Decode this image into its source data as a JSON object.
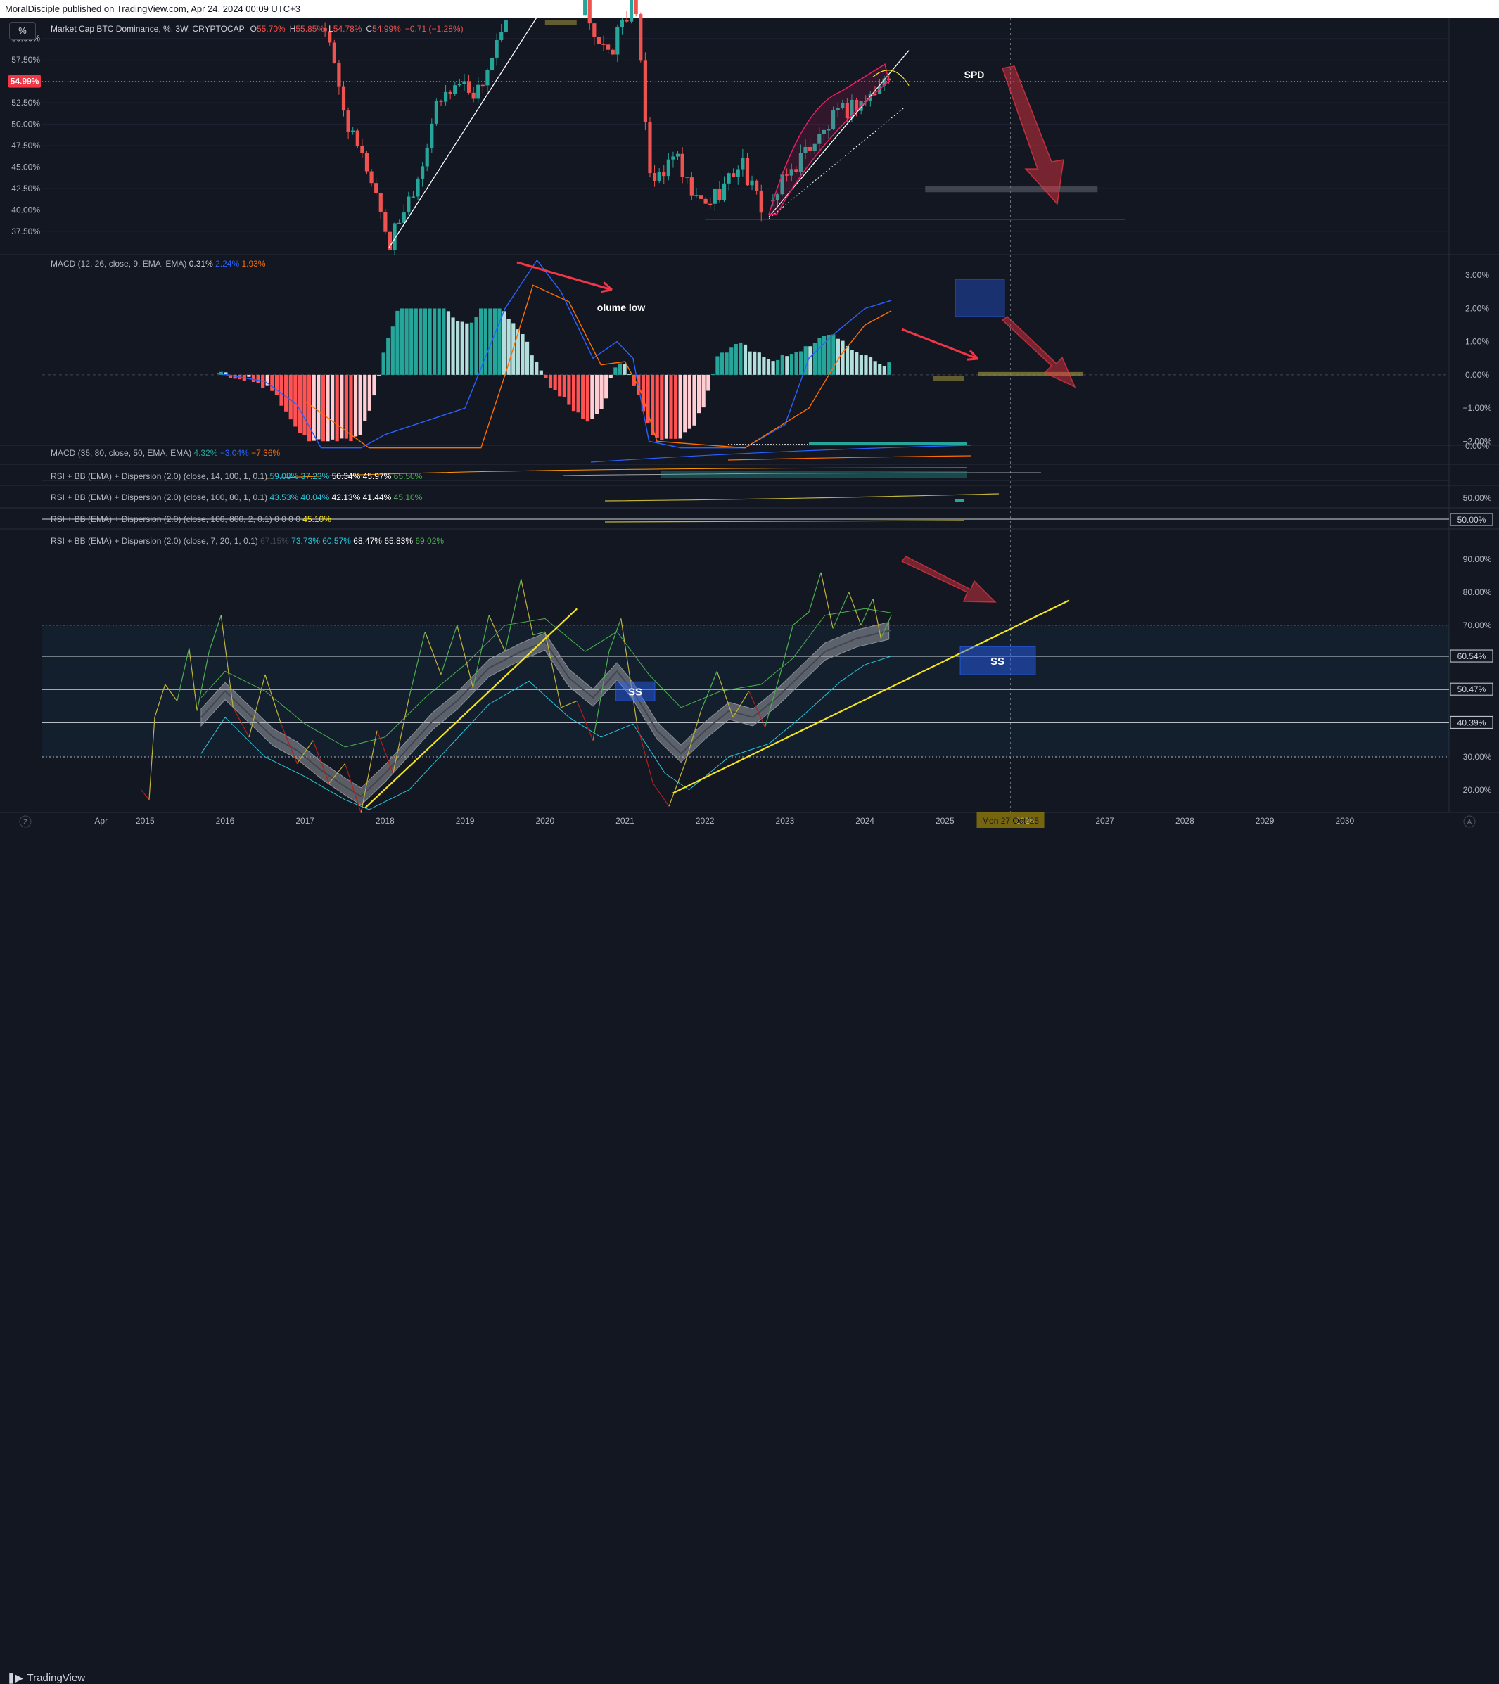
{
  "header": {
    "published": "MoralDisciple published on TradingView.com, Apr 24, 2024 00:09 UTC+3"
  },
  "toolbar": {
    "percent_button": "%"
  },
  "footer": {
    "logo_text": "TradingView",
    "corner_left": "Z",
    "corner_right": "A"
  },
  "colors": {
    "background": "#131722",
    "up": "#26a69a",
    "down": "#ef5350",
    "macd": "#2962ff",
    "signal": "#ff6d00",
    "rsi_trend": "#f4e320"
  },
  "chart_data": [
    {
      "type": "candlestick",
      "legend": {
        "title": "Market Cap BTC Dominance, %, 3W, CRYPTOCAP",
        "o_label": "O",
        "o": "55.70%",
        "h_label": "H",
        "h": "55.85%",
        "l_label": "L",
        "l": "54.78%",
        "c_label": "C",
        "c": "54.99%",
        "change": "−0.71 (−1.28%)"
      },
      "y_ticks": [
        "60.00%",
        "57.50%",
        "55.00%",
        "52.50%",
        "50.00%",
        "47.50%",
        "45.00%",
        "42.50%",
        "40.00%",
        "37.50%"
      ],
      "price_badge": "54.99%",
      "annotations": [
        "SPD"
      ],
      "ylim": [
        35.6,
        61.2
      ],
      "close_series": [
        [
          2017.25,
          61.2
        ],
        [
          2017.45,
          53.0
        ],
        [
          2017.6,
          48.0
        ],
        [
          2017.8,
          44.5
        ],
        [
          2017.95,
          40.0
        ],
        [
          2018.05,
          35.6
        ],
        [
          2018.15,
          38.5
        ],
        [
          2018.3,
          41.5
        ],
        [
          2018.45,
          45.0
        ],
        [
          2018.6,
          51.0
        ],
        [
          2018.8,
          54.0
        ],
        [
          2018.95,
          55.0
        ],
        [
          2019.15,
          53.5
        ],
        [
          2019.3,
          57.0
        ],
        [
          2019.45,
          60.0
        ],
        [
          2019.55,
          62.5
        ],
        [
          2020.5,
          64.0
        ],
        [
          2020.65,
          60.0
        ],
        [
          2020.8,
          57.5
        ],
        [
          2020.95,
          62.0
        ],
        [
          2021.1,
          64.0
        ],
        [
          2021.2,
          58.0
        ],
        [
          2021.3,
          45.0
        ],
        [
          2021.45,
          43.0
        ],
        [
          2021.6,
          47.0
        ],
        [
          2021.75,
          43.0
        ],
        [
          2021.9,
          41.0
        ],
        [
          2022.0,
          40.5
        ],
        [
          2022.15,
          42.0
        ],
        [
          2022.3,
          43.5
        ],
        [
          2022.45,
          46.0
        ],
        [
          2022.6,
          42.0
        ],
        [
          2022.75,
          40.0
        ],
        [
          2022.85,
          41.0
        ],
        [
          2023.0,
          43.5
        ],
        [
          2023.15,
          45.5
        ],
        [
          2023.3,
          47.5
        ],
        [
          2023.45,
          48.5
        ],
        [
          2023.6,
          50.5
        ],
        [
          2023.75,
          51.5
        ],
        [
          2023.9,
          52.5
        ],
        [
          2024.05,
          53.0
        ],
        [
          2024.2,
          54.5
        ],
        [
          2024.3,
          55.7
        ],
        [
          2024.33,
          54.99
        ]
      ]
    },
    {
      "type": "bar",
      "legend": {
        "title": "MACD (12, 26, close, 9, EMA, EMA)",
        "hist": "0.31%",
        "macd": "2.24%",
        "signal": "1.93%"
      },
      "y_ticks": [
        "3.00%",
        "2.00%",
        "1.00%",
        "0.00%",
        "−1.00%",
        "−2.00%"
      ],
      "annotations": [
        "olume low"
      ],
      "ylim": [
        -2.1,
        3.45
      ],
      "histogram": [
        [
          2015.95,
          0.02
        ],
        [
          2016.3,
          -0.15
        ],
        [
          2016.6,
          -0.5
        ],
        [
          2016.85,
          -1.5
        ],
        [
          2017.05,
          -2.0
        ],
        [
          2017.25,
          -2.0
        ],
        [
          2017.5,
          -2.0
        ],
        [
          2017.7,
          -1.8
        ],
        [
          2017.85,
          -0.8
        ],
        [
          2017.95,
          0.4
        ],
        [
          2018.2,
          2.3
        ],
        [
          2018.45,
          3.0
        ],
        [
          2018.65,
          2.5
        ],
        [
          2018.85,
          1.7
        ],
        [
          2019.05,
          1.5
        ],
        [
          2019.3,
          2.4
        ],
        [
          2019.5,
          1.9
        ],
        [
          2019.75,
          1.1
        ],
        [
          2019.9,
          0.3
        ],
        [
          2020.05,
          -0.3
        ],
        [
          2020.3,
          -0.9
        ],
        [
          2020.55,
          -1.4
        ],
        [
          2020.75,
          -0.9
        ],
        [
          2020.85,
          0.2
        ],
        [
          2021.0,
          0.4
        ],
        [
          2021.2,
          -0.8
        ],
        [
          2021.35,
          -1.9
        ],
        [
          2021.6,
          -2.0
        ],
        [
          2021.85,
          -1.6
        ],
        [
          2022.0,
          -0.8
        ],
        [
          2022.15,
          0.5
        ],
        [
          2022.45,
          0.95
        ],
        [
          2022.7,
          0.6
        ],
        [
          2022.9,
          0.45
        ],
        [
          2023.2,
          0.75
        ],
        [
          2023.45,
          1.1
        ],
        [
          2023.6,
          1.3
        ],
        [
          2023.85,
          0.8
        ],
        [
          2024.1,
          0.45
        ],
        [
          2024.3,
          0.31
        ]
      ],
      "macd_line": [
        [
          2015.9,
          0.05
        ],
        [
          2016.5,
          -0.2
        ],
        [
          2016.9,
          -0.9
        ],
        [
          2017.2,
          -2.2
        ],
        [
          2017.7,
          -2.2
        ],
        [
          2018.0,
          -1.8
        ],
        [
          2019.0,
          -1.0
        ],
        [
          2019.5,
          2.0
        ],
        [
          2019.9,
          3.45
        ],
        [
          2020.2,
          2.5
        ],
        [
          2020.6,
          0.5
        ],
        [
          2020.9,
          1.0
        ],
        [
          2021.1,
          0.5
        ],
        [
          2021.3,
          -2.0
        ],
        [
          2021.7,
          -2.2
        ],
        [
          2022.5,
          -2.2
        ],
        [
          2023.0,
          -1.5
        ],
        [
          2023.3,
          0.5
        ],
        [
          2023.6,
          1.2
        ],
        [
          2024.0,
          2.0
        ],
        [
          2024.33,
          2.24
        ]
      ],
      "signal_line": [
        [
          2017.0,
          -0.8
        ],
        [
          2017.8,
          -2.2
        ],
        [
          2019.2,
          -2.2
        ],
        [
          2019.5,
          0.0
        ],
        [
          2019.85,
          2.7
        ],
        [
          2020.3,
          2.2
        ],
        [
          2020.7,
          0.3
        ],
        [
          2021.0,
          0.4
        ],
        [
          2021.2,
          -0.5
        ],
        [
          2021.4,
          -2.0
        ],
        [
          2022.5,
          -2.2
        ],
        [
          2023.3,
          -1.0
        ],
        [
          2023.7,
          0.6
        ],
        [
          2024.0,
          1.5
        ],
        [
          2024.33,
          1.93
        ]
      ]
    },
    {
      "type": "line",
      "legend": {
        "title": "MACD (35, 80, close, 50, EMA, EMA)",
        "v1": "4.32%",
        "v2": "−3.04%",
        "v3": "−7.36%"
      },
      "y_ticks": [
        "0.00%"
      ]
    },
    {
      "type": "line",
      "legend": {
        "title": "RSI + BB (EMA) + Dispersion (2.0) (close, 14, 100, 1, 0.1)",
        "v1": "59.08%",
        "v2": "37.23%",
        "v3": "50.34%",
        "v4": "45.97%",
        "v5": "65.50%"
      }
    },
    {
      "type": "line",
      "legend": {
        "title": "RSI + BB (EMA) + Dispersion (2.0) (close, 100, 80, 1, 0.1)",
        "v1": "43.53%",
        "v2": "40.04%",
        "v3": "42.13%",
        "v4": "41.44%",
        "v5": "45.10%"
      },
      "y_ticks": [
        "50.00%"
      ]
    },
    {
      "type": "line",
      "legend": {
        "title": "RSI + BB (EMA) + Dispersion (2.0) (close, 100, 800, 2, 0.1)",
        "v1": "0",
        "v2": "0",
        "v3": "0",
        "v4": "0",
        "v5": "45.10%"
      },
      "y_ticks": [
        "50.00%"
      ]
    },
    {
      "type": "line",
      "legend": {
        "title": "RSI + BB (EMA) + Dispersion (2.0) (close, 7, 20, 1, 0.1)",
        "v0": "67.15%",
        "v1": "73.73%",
        "v2": "60.57%",
        "v3": "68.47%",
        "v4": "65.83%",
        "v5": "69.02%"
      },
      "y_ticks": [
        "90.00%",
        "80.00%",
        "70.00%",
        "60.54%",
        "50.47%",
        "40.39%",
        "30.00%",
        "20.00%"
      ],
      "annotations": [
        "SS",
        "SS"
      ],
      "ylim": [
        14.2,
        97.5
      ],
      "rsi_basis": [
        [
          2015.7,
          42
        ],
        [
          2016.0,
          50
        ],
        [
          2016.3,
          43
        ],
        [
          2016.6,
          36
        ],
        [
          2016.9,
          32
        ],
        [
          2017.2,
          26
        ],
        [
          2017.5,
          21
        ],
        [
          2017.7,
          18
        ],
        [
          2018.0,
          25
        ],
        [
          2018.3,
          33
        ],
        [
          2018.6,
          41
        ],
        [
          2018.9,
          47
        ],
        [
          2019.3,
          57
        ],
        [
          2019.7,
          62
        ],
        [
          2020.0,
          65
        ],
        [
          2020.3,
          54
        ],
        [
          2020.6,
          48
        ],
        [
          2020.9,
          56
        ],
        [
          2021.1,
          50
        ],
        [
          2021.4,
          38
        ],
        [
          2021.7,
          31
        ],
        [
          2022.0,
          38
        ],
        [
          2022.3,
          44
        ],
        [
          2022.6,
          42
        ],
        [
          2022.9,
          48
        ],
        [
          2023.2,
          55
        ],
        [
          2023.5,
          62
        ],
        [
          2023.9,
          66
        ],
        [
          2024.33,
          68.47
        ]
      ],
      "rsi_upper": [
        [
          2015.7,
          48
        ],
        [
          2016.0,
          56
        ],
        [
          2016.5,
          50
        ],
        [
          2017.0,
          40
        ],
        [
          2017.5,
          33
        ],
        [
          2018.0,
          36
        ],
        [
          2018.5,
          48
        ],
        [
          2019.0,
          58
        ],
        [
          2019.5,
          70
        ],
        [
          2020.0,
          72
        ],
        [
          2020.5,
          62
        ],
        [
          2020.9,
          68
        ],
        [
          2021.3,
          55
        ],
        [
          2021.7,
          45
        ],
        [
          2022.2,
          50
        ],
        [
          2022.7,
          52
        ],
        [
          2023.1,
          60
        ],
        [
          2023.5,
          73
        ],
        [
          2024.0,
          75
        ],
        [
          2024.33,
          73.73
        ]
      ],
      "rsi_lower": [
        [
          2015.7,
          31
        ],
        [
          2016.0,
          42
        ],
        [
          2016.5,
          30
        ],
        [
          2017.0,
          24
        ],
        [
          2017.5,
          17
        ],
        [
          2017.8,
          14
        ],
        [
          2018.3,
          20
        ],
        [
          2018.8,
          33
        ],
        [
          2019.3,
          46
        ],
        [
          2019.8,
          53
        ],
        [
          2020.3,
          42
        ],
        [
          2020.7,
          36
        ],
        [
          2021.1,
          40
        ],
        [
          2021.5,
          25
        ],
        [
          2021.8,
          20
        ],
        [
          2022.3,
          30
        ],
        [
          2022.8,
          34
        ],
        [
          2023.2,
          42
        ],
        [
          2023.7,
          53
        ],
        [
          2024.0,
          58
        ],
        [
          2024.33,
          60.57
        ]
      ],
      "rsi_raw": [
        [
          2014.95,
          20
        ],
        [
          2015.05,
          17
        ],
        [
          2015.12,
          42
        ],
        [
          2015.25,
          52
        ],
        [
          2015.4,
          47
        ],
        [
          2015.55,
          63
        ],
        [
          2015.65,
          44
        ],
        [
          2015.8,
          62
        ],
        [
          2015.95,
          73
        ],
        [
          2016.1,
          45
        ],
        [
          2016.3,
          36
        ],
        [
          2016.5,
          55
        ],
        [
          2016.7,
          40
        ],
        [
          2016.9,
          28
        ],
        [
          2017.1,
          35
        ],
        [
          2017.3,
          22
        ],
        [
          2017.5,
          28
        ],
        [
          2017.7,
          13
        ],
        [
          2017.9,
          38
        ],
        [
          2018.1,
          25
        ],
        [
          2018.3,
          48
        ],
        [
          2018.5,
          68
        ],
        [
          2018.7,
          55
        ],
        [
          2018.9,
          70
        ],
        [
          2019.1,
          51
        ],
        [
          2019.3,
          73
        ],
        [
          2019.5,
          62
        ],
        [
          2019.7,
          84
        ],
        [
          2019.85,
          67
        ],
        [
          2020.0,
          68
        ],
        [
          2020.2,
          45
        ],
        [
          2020.4,
          47
        ],
        [
          2020.6,
          35
        ],
        [
          2020.8,
          62
        ],
        [
          2020.95,
          72
        ],
        [
          2021.15,
          40
        ],
        [
          2021.35,
          22
        ],
        [
          2021.55,
          15
        ],
        [
          2021.75,
          28
        ],
        [
          2021.95,
          44
        ],
        [
          2022.15,
          56
        ],
        [
          2022.35,
          42
        ],
        [
          2022.55,
          50
        ],
        [
          2022.75,
          39
        ],
        [
          2022.95,
          56
        ],
        [
          2023.1,
          70
        ],
        [
          2023.3,
          74
        ],
        [
          2023.45,
          86
        ],
        [
          2023.6,
          69
        ],
        [
          2023.8,
          80
        ],
        [
          2023.95,
          70
        ],
        [
          2024.1,
          78
        ],
        [
          2024.2,
          66
        ],
        [
          2024.33,
          73
        ]
      ]
    }
  ],
  "x_axis": {
    "labels": [
      {
        "t": "Apr",
        "x": 2014.45
      },
      {
        "t": "2015",
        "x": 2015.0
      },
      {
        "t": "2016",
        "x": 2016.0
      },
      {
        "t": "2017",
        "x": 2017.0
      },
      {
        "t": "2018",
        "x": 2018.0
      },
      {
        "t": "2019",
        "x": 2019.0
      },
      {
        "t": "2020",
        "x": 2020.0
      },
      {
        "t": "2021",
        "x": 2021.0
      },
      {
        "t": "2022",
        "x": 2022.0
      },
      {
        "t": "2023",
        "x": 2023.0
      },
      {
        "t": "2024",
        "x": 2024.0
      },
      {
        "t": "2025",
        "x": 2025.0
      },
      {
        "t": "2026",
        "x": 2026.0
      },
      {
        "t": "2027",
        "x": 2027.0
      },
      {
        "t": "2028",
        "x": 2028.0
      },
      {
        "t": "2029",
        "x": 2029.0
      },
      {
        "t": "2030",
        "x": 2030.0
      }
    ],
    "cursor_label": "Mon 27 Oct '25",
    "cursor_x": 2025.82
  }
}
